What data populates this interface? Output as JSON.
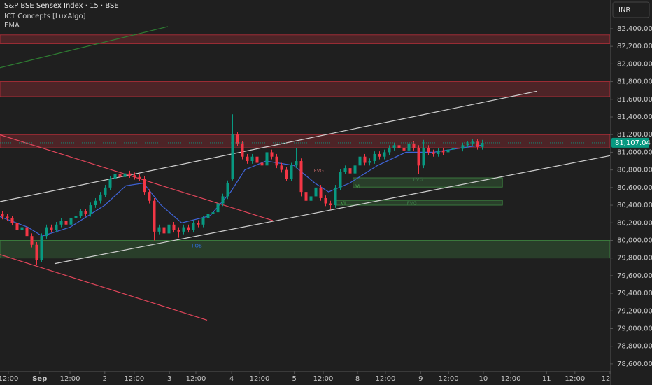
{
  "chart_data": {
    "type": "candlestick",
    "title": "S&P BSE Sensex Index · 15 · BSE",
    "indicators": [
      "ICT Concepts [LuxAlgo]",
      "EMA"
    ],
    "currency": "INR",
    "last_price": 81107.04,
    "last_price_label": "81,107.04",
    "up_color": "#089981",
    "down_color": "#f23645",
    "xlim": [
      -0.5,
      124.07
    ],
    "ylim": [
      78520,
      82725
    ],
    "xticks": [
      {
        "value": 1.2,
        "label": "12:00"
      },
      {
        "value": 7.6,
        "label": "Sep"
      },
      {
        "value": 13.8,
        "label": "12:00"
      },
      {
        "value": 20.9,
        "label": "2"
      },
      {
        "value": 26.9,
        "label": "12:00"
      },
      {
        "value": 34.1,
        "label": "3"
      },
      {
        "value": 39.5,
        "label": "12:00"
      },
      {
        "value": 46.8,
        "label": "4"
      },
      {
        "value": 52.5,
        "label": "12:00"
      },
      {
        "value": 59.6,
        "label": "5"
      },
      {
        "value": 65.5,
        "label": "12:00"
      },
      {
        "value": 72.5,
        "label": "8"
      },
      {
        "value": 78.2,
        "label": "12:00"
      },
      {
        "value": 85.4,
        "label": "9"
      },
      {
        "value": 91.1,
        "label": "12:00"
      },
      {
        "value": 98.2,
        "label": "10"
      },
      {
        "value": 103.8,
        "label": "12:00"
      },
      {
        "value": 111.1,
        "label": "11"
      },
      {
        "value": 116.9,
        "label": "12:00"
      },
      {
        "value": 124.07,
        "label": "12"
      }
    ],
    "yticks": [
      {
        "value": 82400,
        "label": "82,400.00"
      },
      {
        "value": 82200,
        "label": "82,200.00"
      },
      {
        "value": 82000,
        "label": "82,000.00"
      },
      {
        "value": 81800,
        "label": "81,800.00"
      },
      {
        "value": 81600,
        "label": "81,600.00"
      },
      {
        "value": 81400,
        "label": "81,400.00"
      },
      {
        "value": 81200,
        "label": "81,200.00"
      },
      {
        "value": 81000,
        "label": "81,000.00"
      },
      {
        "value": 80800,
        "label": "80,800.00"
      },
      {
        "value": 80600,
        "label": "80,600.00"
      },
      {
        "value": 80400,
        "label": "80,400.00"
      },
      {
        "value": 80200,
        "label": "80,200.00"
      },
      {
        "value": 80000,
        "label": "80,000.00"
      },
      {
        "value": 79800,
        "label": "79,800.00"
      },
      {
        "value": 79600,
        "label": "79,600.00"
      },
      {
        "value": 79400,
        "label": "79,400.00"
      },
      {
        "value": 79200,
        "label": "79,200.00"
      },
      {
        "value": 79000,
        "label": "79,000.00"
      },
      {
        "value": 78800,
        "label": "78,800.00"
      },
      {
        "value": 78600,
        "label": "78,600.00"
      }
    ],
    "x": [
      0,
      1,
      2,
      3,
      4,
      5,
      6,
      7,
      8,
      9,
      10,
      11,
      12,
      13,
      14,
      15,
      16,
      17,
      18,
      19,
      20,
      21,
      22,
      23,
      24,
      25,
      26,
      27,
      28,
      29,
      30,
      31,
      32,
      33,
      34,
      35,
      36,
      37,
      38,
      39,
      40,
      41,
      42,
      43,
      44,
      45,
      46,
      47,
      48,
      49,
      50,
      51,
      52,
      53,
      54,
      55,
      56,
      57,
      58,
      59,
      60,
      61,
      62,
      63,
      64,
      65,
      66,
      67,
      68,
      69,
      70,
      71,
      72,
      73,
      74,
      75,
      76,
      77,
      78,
      79,
      80,
      81,
      82,
      83,
      84,
      85,
      86,
      87,
      88,
      89,
      90,
      91,
      92,
      93,
      94,
      95,
      96,
      97,
      98
    ],
    "open": [
      80300,
      80270,
      80250,
      80200,
      80120,
      80150,
      80050,
      79950,
      79780,
      80050,
      80150,
      80120,
      80180,
      80220,
      80180,
      80250,
      80280,
      80330,
      80300,
      80400,
      80450,
      80520,
      80600,
      80700,
      80750,
      80720,
      80760,
      80740,
      80720,
      80700,
      80550,
      80450,
      80100,
      80150,
      80080,
      80180,
      80120,
      80100,
      80150,
      80120,
      80200,
      80180,
      80250,
      80300,
      80320,
      80420,
      80500,
      80700,
      81200,
      81100,
      80950,
      80900,
      80950,
      80880,
      80850,
      81000,
      80950,
      80850,
      80800,
      80700,
      80850,
      80900,
      80550,
      80450,
      80500,
      80600,
      80480,
      80420,
      80400,
      80600,
      80780,
      80820,
      80760,
      80850,
      80950,
      80880,
      80900,
      80980,
      80950,
      81000,
      81050,
      81080,
      81050,
      81020,
      81100,
      81050,
      80850,
      81050,
      81000,
      80980,
      81020,
      81000,
      81030,
      81050,
      81040,
      81080,
      81100,
      81120,
      81060
    ],
    "high": [
      80330,
      80300,
      80280,
      80230,
      80180,
      80180,
      80080,
      79980,
      80080,
      80180,
      80180,
      80210,
      80250,
      80250,
      80280,
      80310,
      80360,
      80360,
      80430,
      80480,
      80550,
      80630,
      80730,
      80780,
      80780,
      80790,
      80790,
      80770,
      80750,
      80730,
      80580,
      80480,
      80180,
      80180,
      80210,
      80210,
      80150,
      80180,
      80180,
      80230,
      80230,
      80280,
      80330,
      80350,
      80450,
      80530,
      80680,
      81430,
      81230,
      81130,
      80980,
      80980,
      80980,
      80910,
      81030,
      81030,
      80980,
      80880,
      80830,
      80880,
      81050,
      80930,
      80580,
      80530,
      80630,
      80630,
      80510,
      80450,
      80630,
      80810,
      80850,
      80850,
      80880,
      81000,
      80980,
      80930,
      81010,
      81010,
      81030,
      81080,
      81110,
      81110,
      81080,
      81150,
      81130,
      81080,
      81140,
      81080,
      81030,
      81050,
      81050,
      81060,
      81080,
      81080,
      81110,
      81130,
      81150,
      81150,
      81140
    ],
    "low": [
      80240,
      80220,
      80170,
      80090,
      80090,
      80020,
      79920,
      79720,
      79750,
      80020,
      80090,
      80090,
      80150,
      80150,
      80150,
      80220,
      80250,
      80270,
      80270,
      80370,
      80420,
      80490,
      80570,
      80670,
      80690,
      80690,
      80710,
      80690,
      80670,
      80520,
      80420,
      80000,
      80070,
      80050,
      80050,
      80090,
      80030,
      80070,
      80090,
      80090,
      80150,
      80150,
      80220,
      80270,
      80290,
      80390,
      80470,
      80680,
      81070,
      80920,
      80870,
      80870,
      80850,
      80820,
      80820,
      80920,
      80820,
      80770,
      80670,
      80670,
      80820,
      80500,
      80330,
      80420,
      80470,
      80450,
      80390,
      80350,
      80370,
      80570,
      80750,
      80730,
      80730,
      80820,
      80850,
      80850,
      80870,
      80920,
      80920,
      80970,
      81020,
      81020,
      80990,
      80990,
      81020,
      80750,
      80820,
      80970,
      80950,
      80950,
      80970,
      80970,
      81000,
      81010,
      81010,
      81050,
      81070,
      81030,
      81030
    ],
    "close": [
      80270,
      80250,
      80200,
      80120,
      80150,
      80050,
      79950,
      79780,
      80050,
      80150,
      80120,
      80180,
      80220,
      80180,
      80250,
      80280,
      80330,
      80300,
      80400,
      80450,
      80520,
      80600,
      80700,
      80750,
      80720,
      80760,
      80740,
      80720,
      80700,
      80550,
      80450,
      80100,
      80150,
      80080,
      80180,
      80120,
      80100,
      80150,
      80120,
      80200,
      80180,
      80250,
      80300,
      80320,
      80420,
      80500,
      80650,
      81200,
      81100,
      80950,
      80900,
      80950,
      80880,
      80850,
      81000,
      80950,
      80850,
      80800,
      80700,
      80850,
      80900,
      80550,
      80450,
      80500,
      80600,
      80480,
      80420,
      80400,
      80600,
      80780,
      80820,
      80760,
      80850,
      80950,
      80880,
      80900,
      80980,
      80950,
      81000,
      81050,
      81080,
      81050,
      81020,
      81100,
      81050,
      80850,
      81050,
      81000,
      80980,
      81020,
      81000,
      81030,
      81050,
      81040,
      81080,
      81100,
      81120,
      81060,
      81107.04
    ],
    "ema": {
      "color": "#3f64d8",
      "x": [
        -0.5,
        5.2,
        8.1,
        13.8,
        20.9,
        25.2,
        28.8,
        32.4,
        36.6,
        42.4,
        46.6,
        49.5,
        53.8,
        59.5,
        63.8,
        66.6,
        70.9,
        76.6,
        82.4,
        88.1,
        93.8,
        97.8
      ],
      "values": [
        80270,
        80150,
        80050,
        80150,
        80400,
        80620,
        80650,
        80400,
        80200,
        80280,
        80550,
        80800,
        80900,
        80850,
        80650,
        80550,
        80650,
        80850,
        81000,
        81000,
        81050,
        81080
      ]
    },
    "zones": [
      {
        "x": [
          -0.5,
          124.07
        ],
        "low": 82230,
        "high": 82330,
        "color": "#f23645"
      },
      {
        "x": [
          -0.5,
          124.07
        ],
        "low": 81630,
        "high": 81800,
        "color": "#f23645"
      },
      {
        "x": [
          -0.5,
          124.07
        ],
        "low": 81050,
        "high": 81200,
        "color": "#f23645"
      },
      {
        "x": [
          -0.5,
          124.07
        ],
        "low": 79800,
        "high": 80000,
        "color": "#4caf50"
      },
      {
        "x": [
          71.6,
          102.1
        ],
        "low": 80605,
        "high": 80710,
        "color": "#4caf50"
      },
      {
        "x": [
          68.1,
          102.1
        ],
        "low": 80400,
        "high": 80455,
        "color": "#4caf50"
      }
    ],
    "trendlines": [
      {
        "x": [
          -0.5,
          109.07
        ],
        "y": [
          80440,
          81690
        ],
        "color": "#d0d0d0"
      },
      {
        "x": [
          10.64,
          124.07
        ],
        "y": [
          79736,
          80961
        ],
        "color": "#d0d0d0"
      },
      {
        "x": [
          -0.5,
          55.21
        ],
        "y": [
          81198,
          80226
        ],
        "color": "#e0455a"
      },
      {
        "x": [
          -0.5,
          41.79
        ],
        "y": [
          79839,
          79096
        ],
        "color": "#e0455a"
      },
      {
        "x": [
          -0.5,
          33.79
        ],
        "y": [
          81957,
          82424
        ],
        "color": "#2e7d32"
      }
    ],
    "annotations": [
      {
        "text": "FVG",
        "x": 64.6,
        "y": 80790,
        "color": "#b06060"
      },
      {
        "text": "FVG",
        "x": 84.9,
        "y": 80690,
        "color": "#3f7a4a"
      },
      {
        "text": "VI",
        "x": 72.6,
        "y": 80610,
        "color": "#4caf50"
      },
      {
        "text": "VI",
        "x": 69.6,
        "y": 80420,
        "color": "#4caf50"
      },
      {
        "text": "FVG",
        "x": 83.6,
        "y": 80420,
        "color": "#3f7a4a"
      },
      {
        "text": "+OB",
        "x": 39.6,
        "y": 79935,
        "color": "#2f6fe0"
      }
    ]
  }
}
